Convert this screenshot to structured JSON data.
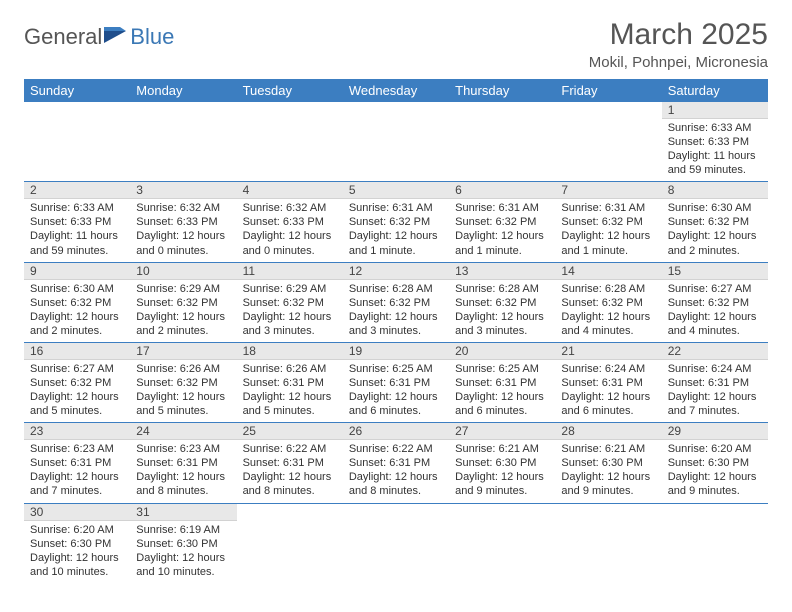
{
  "logo": {
    "general": "General",
    "blue": "Blue"
  },
  "title": "March 2025",
  "location": "Mokil, Pohnpei, Micronesia",
  "colors": {
    "headerBg": "#3c7ec1",
    "rowDivider": "#3c7ec1",
    "dayNumBg": "#e8e8e8"
  },
  "dayHeaders": [
    "Sunday",
    "Monday",
    "Tuesday",
    "Wednesday",
    "Thursday",
    "Friday",
    "Saturday"
  ],
  "weeks": [
    [
      null,
      null,
      null,
      null,
      null,
      null,
      {
        "n": "1",
        "sr": "Sunrise: 6:33 AM",
        "ss": "Sunset: 6:33 PM",
        "dl": "Daylight: 11 hours and 59 minutes."
      }
    ],
    [
      {
        "n": "2",
        "sr": "Sunrise: 6:33 AM",
        "ss": "Sunset: 6:33 PM",
        "dl": "Daylight: 11 hours and 59 minutes."
      },
      {
        "n": "3",
        "sr": "Sunrise: 6:32 AM",
        "ss": "Sunset: 6:33 PM",
        "dl": "Daylight: 12 hours and 0 minutes."
      },
      {
        "n": "4",
        "sr": "Sunrise: 6:32 AM",
        "ss": "Sunset: 6:33 PM",
        "dl": "Daylight: 12 hours and 0 minutes."
      },
      {
        "n": "5",
        "sr": "Sunrise: 6:31 AM",
        "ss": "Sunset: 6:32 PM",
        "dl": "Daylight: 12 hours and 1 minute."
      },
      {
        "n": "6",
        "sr": "Sunrise: 6:31 AM",
        "ss": "Sunset: 6:32 PM",
        "dl": "Daylight: 12 hours and 1 minute."
      },
      {
        "n": "7",
        "sr": "Sunrise: 6:31 AM",
        "ss": "Sunset: 6:32 PM",
        "dl": "Daylight: 12 hours and 1 minute."
      },
      {
        "n": "8",
        "sr": "Sunrise: 6:30 AM",
        "ss": "Sunset: 6:32 PM",
        "dl": "Daylight: 12 hours and 2 minutes."
      }
    ],
    [
      {
        "n": "9",
        "sr": "Sunrise: 6:30 AM",
        "ss": "Sunset: 6:32 PM",
        "dl": "Daylight: 12 hours and 2 minutes."
      },
      {
        "n": "10",
        "sr": "Sunrise: 6:29 AM",
        "ss": "Sunset: 6:32 PM",
        "dl": "Daylight: 12 hours and 2 minutes."
      },
      {
        "n": "11",
        "sr": "Sunrise: 6:29 AM",
        "ss": "Sunset: 6:32 PM",
        "dl": "Daylight: 12 hours and 3 minutes."
      },
      {
        "n": "12",
        "sr": "Sunrise: 6:28 AM",
        "ss": "Sunset: 6:32 PM",
        "dl": "Daylight: 12 hours and 3 minutes."
      },
      {
        "n": "13",
        "sr": "Sunrise: 6:28 AM",
        "ss": "Sunset: 6:32 PM",
        "dl": "Daylight: 12 hours and 3 minutes."
      },
      {
        "n": "14",
        "sr": "Sunrise: 6:28 AM",
        "ss": "Sunset: 6:32 PM",
        "dl": "Daylight: 12 hours and 4 minutes."
      },
      {
        "n": "15",
        "sr": "Sunrise: 6:27 AM",
        "ss": "Sunset: 6:32 PM",
        "dl": "Daylight: 12 hours and 4 minutes."
      }
    ],
    [
      {
        "n": "16",
        "sr": "Sunrise: 6:27 AM",
        "ss": "Sunset: 6:32 PM",
        "dl": "Daylight: 12 hours and 5 minutes."
      },
      {
        "n": "17",
        "sr": "Sunrise: 6:26 AM",
        "ss": "Sunset: 6:32 PM",
        "dl": "Daylight: 12 hours and 5 minutes."
      },
      {
        "n": "18",
        "sr": "Sunrise: 6:26 AM",
        "ss": "Sunset: 6:31 PM",
        "dl": "Daylight: 12 hours and 5 minutes."
      },
      {
        "n": "19",
        "sr": "Sunrise: 6:25 AM",
        "ss": "Sunset: 6:31 PM",
        "dl": "Daylight: 12 hours and 6 minutes."
      },
      {
        "n": "20",
        "sr": "Sunrise: 6:25 AM",
        "ss": "Sunset: 6:31 PM",
        "dl": "Daylight: 12 hours and 6 minutes."
      },
      {
        "n": "21",
        "sr": "Sunrise: 6:24 AM",
        "ss": "Sunset: 6:31 PM",
        "dl": "Daylight: 12 hours and 6 minutes."
      },
      {
        "n": "22",
        "sr": "Sunrise: 6:24 AM",
        "ss": "Sunset: 6:31 PM",
        "dl": "Daylight: 12 hours and 7 minutes."
      }
    ],
    [
      {
        "n": "23",
        "sr": "Sunrise: 6:23 AM",
        "ss": "Sunset: 6:31 PM",
        "dl": "Daylight: 12 hours and 7 minutes."
      },
      {
        "n": "24",
        "sr": "Sunrise: 6:23 AM",
        "ss": "Sunset: 6:31 PM",
        "dl": "Daylight: 12 hours and 8 minutes."
      },
      {
        "n": "25",
        "sr": "Sunrise: 6:22 AM",
        "ss": "Sunset: 6:31 PM",
        "dl": "Daylight: 12 hours and 8 minutes."
      },
      {
        "n": "26",
        "sr": "Sunrise: 6:22 AM",
        "ss": "Sunset: 6:31 PM",
        "dl": "Daylight: 12 hours and 8 minutes."
      },
      {
        "n": "27",
        "sr": "Sunrise: 6:21 AM",
        "ss": "Sunset: 6:30 PM",
        "dl": "Daylight: 12 hours and 9 minutes."
      },
      {
        "n": "28",
        "sr": "Sunrise: 6:21 AM",
        "ss": "Sunset: 6:30 PM",
        "dl": "Daylight: 12 hours and 9 minutes."
      },
      {
        "n": "29",
        "sr": "Sunrise: 6:20 AM",
        "ss": "Sunset: 6:30 PM",
        "dl": "Daylight: 12 hours and 9 minutes."
      }
    ],
    [
      {
        "n": "30",
        "sr": "Sunrise: 6:20 AM",
        "ss": "Sunset: 6:30 PM",
        "dl": "Daylight: 12 hours and 10 minutes."
      },
      {
        "n": "31",
        "sr": "Sunrise: 6:19 AM",
        "ss": "Sunset: 6:30 PM",
        "dl": "Daylight: 12 hours and 10 minutes."
      },
      null,
      null,
      null,
      null,
      null
    ]
  ]
}
